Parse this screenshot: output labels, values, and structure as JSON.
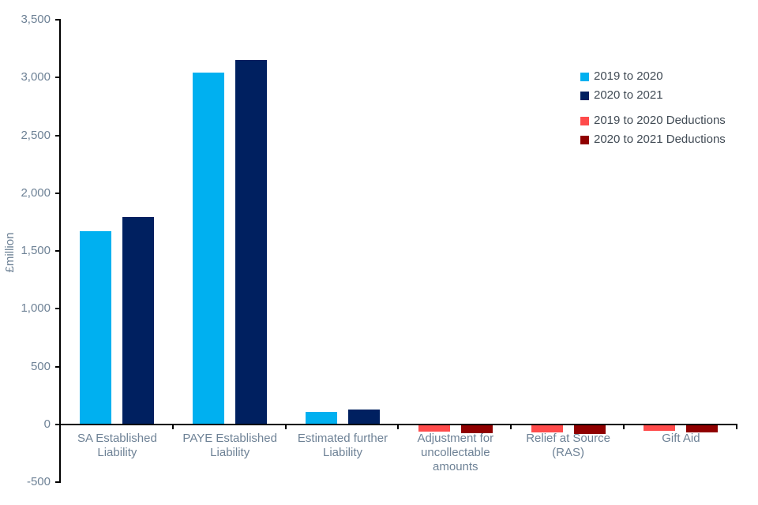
{
  "chart_data": {
    "type": "bar",
    "title": "",
    "ylabel": "£million",
    "categories": [
      "SA Established Liability",
      "PAYE Established Liability",
      "Estimated further Liability",
      "Adjustment for uncollectable amounts",
      "Relief at Source (RAS)",
      "Gift Aid"
    ],
    "series": [
      {
        "name": "2019 to 2020",
        "color": "#00B0F0",
        "values": [
          1670,
          3045,
          110,
          null,
          null,
          null
        ]
      },
      {
        "name": "2020 to 2021",
        "color": "#002060",
        "values": [
          1795,
          3155,
          130,
          null,
          null,
          null
        ]
      },
      {
        "name": "2019 to 2020 Deductions",
        "color": "#FF4B4B",
        "values": [
          null,
          null,
          null,
          -55,
          -60,
          -50
        ]
      },
      {
        "name": "2020 to 2021 Deductions",
        "color": "#900000",
        "values": [
          null,
          null,
          null,
          -70,
          -75,
          -60
        ]
      }
    ],
    "ylim": [
      -500,
      3500
    ],
    "ytick_step": 500,
    "y_ticks": [
      {
        "label": "3,500",
        "value": 3500
      },
      {
        "label": "3,000",
        "value": 3000
      },
      {
        "label": "2,500",
        "value": 2500
      },
      {
        "label": "2,000",
        "value": 2000
      },
      {
        "label": "1,500",
        "value": 1500
      },
      {
        "label": "1,000",
        "value": 1000
      },
      {
        "label": "500",
        "value": 500
      },
      {
        "label": "0",
        "value": 0
      },
      {
        "label": "-500",
        "value": -500
      }
    ],
    "grid": false,
    "legend_position": "top-right",
    "axis_text_color": "#6E8296",
    "legend_text_color": "#414B55",
    "axis_line_color": "#000000",
    "background_color": "#FFFFFF"
  }
}
